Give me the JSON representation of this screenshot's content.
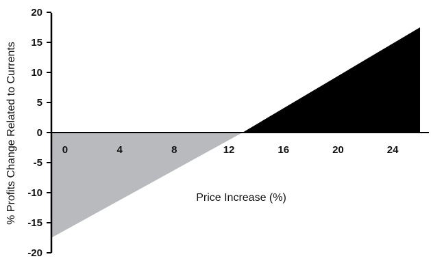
{
  "chart_data": {
    "type": "area",
    "title": "",
    "xlabel": "Price Increase (%)",
    "ylabel": "% Profits Change Related to Currents",
    "xlim": [
      -1,
      26
    ],
    "ylim": [
      -20,
      20
    ],
    "x_ticks": [
      "0",
      "4",
      "8",
      "12",
      "16",
      "20",
      "24"
    ],
    "x_tick_values": [
      0,
      4,
      8,
      12,
      16,
      20,
      24
    ],
    "y_ticks": [
      "20",
      "15",
      "10",
      "5",
      "0",
      "-5",
      "-10",
      "-15",
      "-20"
    ],
    "y_tick_values": [
      20,
      15,
      10,
      5,
      0,
      -5,
      -10,
      -15,
      -20
    ],
    "series": [
      {
        "x": [
          -1,
          13,
          26
        ],
        "values": [
          -17.5,
          0,
          17.5
        ]
      }
    ],
    "break_even_x": 13,
    "fill_colors": {
      "loss": "#b9babd",
      "profit": "#000000"
    },
    "grid": false
  }
}
